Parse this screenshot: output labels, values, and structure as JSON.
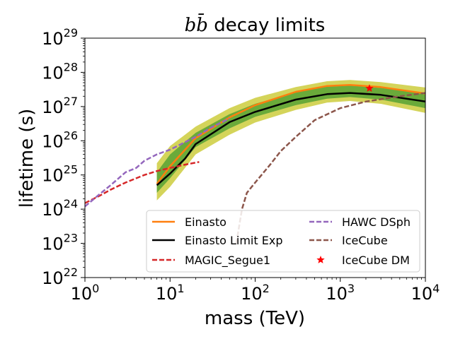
{
  "chart_data": {
    "type": "line",
    "title": "bb̄ decay limits",
    "xlabel": "mass (TeV)",
    "ylabel": "lifetime (s)",
    "xscale": "log",
    "yscale": "log",
    "xlim": [
      1,
      10000
    ],
    "ylim": [
      1e+22,
      1e+29
    ],
    "x_ticks": [
      {
        "base": "10",
        "exp": "0"
      },
      {
        "base": "10",
        "exp": "1"
      },
      {
        "base": "10",
        "exp": "2"
      },
      {
        "base": "10",
        "exp": "3"
      },
      {
        "base": "10",
        "exp": "4"
      }
    ],
    "y_ticks": [
      {
        "base": "10",
        "exp": "22"
      },
      {
        "base": "10",
        "exp": "23"
      },
      {
        "base": "10",
        "exp": "24"
      },
      {
        "base": "10",
        "exp": "25"
      },
      {
        "base": "10",
        "exp": "26"
      },
      {
        "base": "10",
        "exp": "27"
      },
      {
        "base": "10",
        "exp": "28"
      },
      {
        "base": "10",
        "exp": "29"
      }
    ],
    "legend_position": "lower-right",
    "bands": [
      {
        "name": "2 sigma",
        "color": "#d4d45a",
        "x": [
          7,
          10,
          20,
          50,
          100,
          300,
          700,
          1300,
          3000,
          10000
        ],
        "low": [
          1.8e+24,
          4.5e+24,
          4e+25,
          1.5e+26,
          3.4e+26,
          8e+26,
          1.3e+27,
          1.45e+27,
          1.2e+27,
          6.5e+26
        ],
        "high": [
          2.2e+25,
          7e+25,
          2.6e+26,
          9e+26,
          1.8e+27,
          3.7e+27,
          5.5e+27,
          6e+27,
          5.2e+27,
          3.6e+27
        ]
      },
      {
        "name": "1 sigma",
        "color": "#6aaa3a",
        "x": [
          7,
          10,
          20,
          50,
          100,
          300,
          700,
          1300,
          3000,
          10000
        ],
        "low": [
          3e+24,
          8e+24,
          6.5e+25,
          2.3e+26,
          5e+26,
          1.1e+27,
          1.7e+27,
          1.9e+27,
          1.6e+27,
          9e+26
        ],
        "high": [
          1.2e+25,
          4e+25,
          1.7e+26,
          6e+26,
          1.2e+27,
          2.6e+27,
          3.8e+27,
          4.1e+27,
          3.5e+27,
          2.5e+27
        ]
      }
    ],
    "series": [
      {
        "name": "Einasto",
        "color": "#ff7f0e",
        "style": "solid",
        "x": [
          7,
          10,
          20,
          50,
          100,
          300,
          700,
          1300,
          3000,
          10000
        ],
        "y": [
          5.5e+24,
          1.8e+25,
          1.2e+26,
          4.8e+26,
          1.1e+27,
          2.7e+27,
          4e+27,
          4.3e+27,
          3.7e+27,
          2.4e+27
        ]
      },
      {
        "name": "Einasto Limit Exp",
        "color": "#000000",
        "style": "solid",
        "x": [
          7,
          10,
          15,
          20,
          50,
          100,
          300,
          700,
          1300,
          3000,
          10000
        ],
        "y": [
          5e+24,
          1.1e+25,
          3e+25,
          8e+25,
          3.5e+26,
          7e+26,
          1.6e+27,
          2.3e+27,
          2.5e+27,
          2.2e+27,
          1.4e+27
        ]
      },
      {
        "name": "MAGIC_Segue1",
        "color": "#d62728",
        "style": "dashed",
        "x": [
          1,
          1.5,
          2,
          3,
          5,
          7,
          10,
          15,
          22
        ],
        "y": [
          1.5e+24,
          2.5e+24,
          3.7e+24,
          6e+24,
          1e+25,
          1.3e+25,
          1.6e+25,
          2e+25,
          2.4e+25
        ]
      },
      {
        "name": "HAWC DSph",
        "color": "#9467bd",
        "style": "dashed",
        "x": [
          1,
          1.5,
          2,
          3,
          4,
          5,
          7,
          10,
          20,
          30,
          50
        ],
        "y": [
          1.2e+24,
          2.8e+24,
          5e+24,
          1.2e+25,
          1.6e+25,
          2.6e+25,
          4e+25,
          5.5e+25,
          1.3e+26,
          2.4e+26,
          4.5e+26
        ]
      },
      {
        "name": "IceCube",
        "color": "#8c564b",
        "style": "dashed",
        "x": [
          60,
          70,
          80,
          100,
          150,
          200,
          300,
          500,
          1000,
          2000,
          5000,
          10000
        ],
        "y": [
          1e+23,
          1e+24,
          3e+24,
          6e+24,
          2e+25,
          5e+25,
          1.3e+26,
          4e+26,
          9e+26,
          1.4e+27,
          2e+27,
          2.5e+27
        ]
      }
    ],
    "points": [
      {
        "name": "IceCube DM",
        "color": "#ff0000",
        "marker": "star",
        "x": 2200,
        "y": 3.4e+27
      }
    ]
  }
}
